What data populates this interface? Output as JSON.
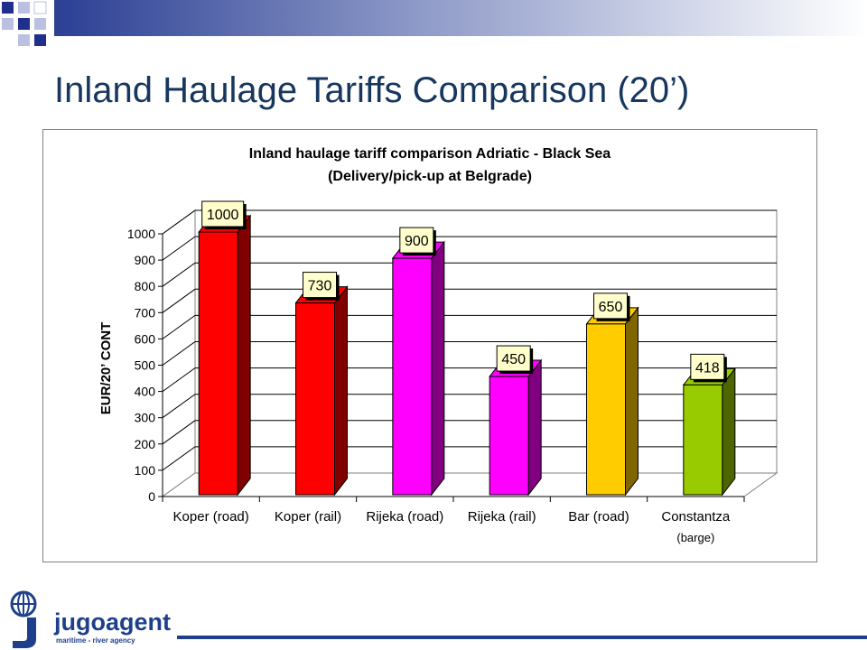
{
  "slide": {
    "title": "Inland Haulage Tariffs Comparison (20’)"
  },
  "logo": {
    "name": "jugoagent",
    "tagline": "maritime - river agency"
  },
  "colors": {
    "title": "#17375e",
    "banner": "#1f3a93",
    "logo_blue": "#1e3f8a"
  },
  "chart_data": {
    "type": "bar",
    "title": "Inland haulage tariff comparison Adriatic - Black Sea",
    "subtitle": "(Delivery/pick-up at Belgrade)",
    "ylabel": "EUR/20’ CONT",
    "xlabel": "",
    "ylim": [
      0,
      1000
    ],
    "y_ticks": [
      0,
      100,
      200,
      300,
      400,
      500,
      600,
      700,
      800,
      900,
      1000
    ],
    "grid": true,
    "legend": "none",
    "categories": [
      [
        "Koper (road)"
      ],
      [
        "Koper (rail)"
      ],
      [
        "Rijeka (road)"
      ],
      [
        "Rijeka (rail)"
      ],
      [
        "Bar (road)"
      ],
      [
        "Constantza",
        "(barge)"
      ]
    ],
    "values": [
      1000,
      730,
      900,
      450,
      650,
      418
    ],
    "data_labels": [
      "1000",
      "730",
      "900",
      "450",
      "650",
      "418"
    ],
    "bar_colors": [
      "#ff0000",
      "#ff0000",
      "#ff00ff",
      "#ff00ff",
      "#ffcc00",
      "#99cc00"
    ],
    "bar_side_colors": [
      "#800000",
      "#800000",
      "#800080",
      "#800080",
      "#806600",
      "#4d6600"
    ],
    "label_box_color": "#ffffcc"
  }
}
